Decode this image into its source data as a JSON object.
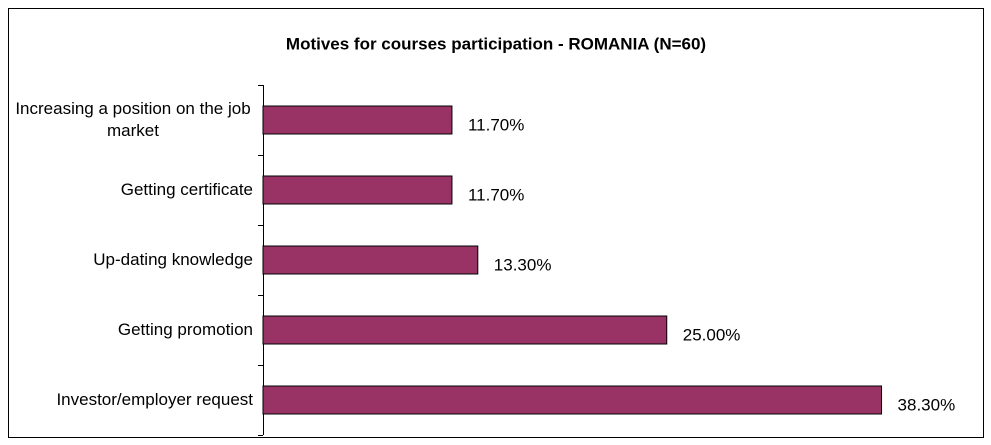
{
  "chart_data": {
    "type": "bar",
    "orientation": "horizontal",
    "title": "Motives for courses participation - ROMANIA (N=60)",
    "categories": [
      "Increasing a position on the job market",
      "Getting certificate",
      "Up-dating knowledge",
      "Getting promotion",
      "Investor/employer request"
    ],
    "values": [
      11.7,
      11.7,
      13.3,
      25,
      38.3
    ],
    "value_labels": [
      "11.70%",
      "11.70%",
      "13.30%",
      "25.00%",
      "38.30%"
    ],
    "color": "#993366",
    "xlim": [
      0,
      40
    ]
  }
}
